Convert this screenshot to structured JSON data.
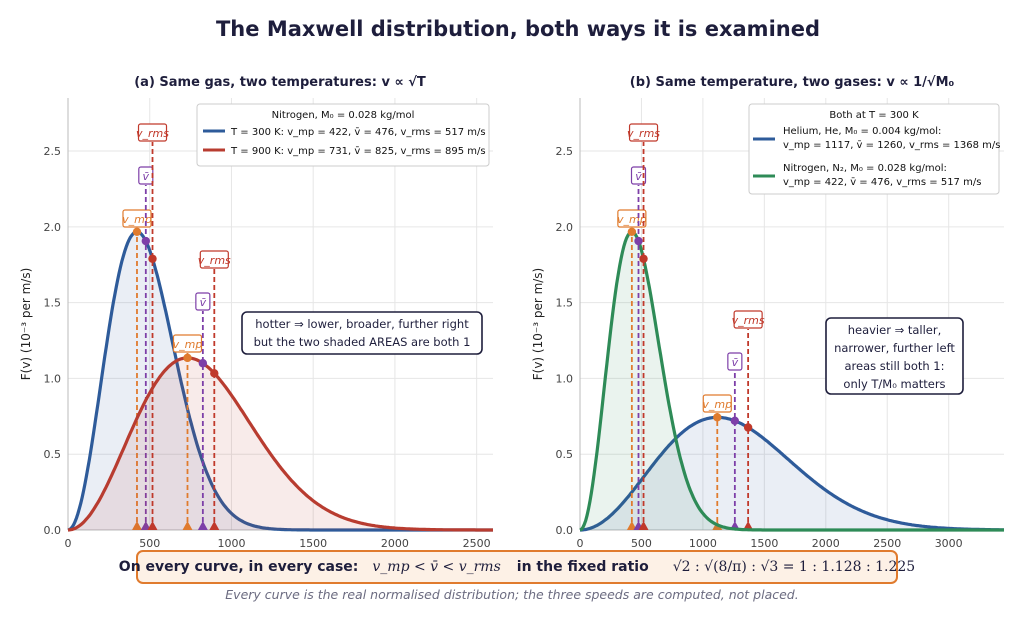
{
  "title": "The Maxwell distribution, both ways it is examined",
  "colors": {
    "blue": "#2e5b9a",
    "red": "#b83c30",
    "green": "#2e8b57",
    "vmp": "#e07b2e",
    "vbar": "#7d3fa8",
    "vrms": "#c0392b",
    "grid": "#e6e6e6",
    "navy": "#1e1e3c"
  },
  "footer": {
    "bold": "On every curve, in every case:",
    "inequality": "v_mp < v̄ < v_rms",
    "mid": "in the fixed ratio",
    "ratio": "√2 : √(8/π) : √3 = 1 : 1.128 : 1.225",
    "caption": "Every curve is the real normalised distribution; the three speeds are computed, not placed."
  },
  "chart_data": [
    {
      "type": "line",
      "title": "(a)  Same gas, two temperatures:  v ∝ √T",
      "xlabel": "",
      "ylabel": "F(v)  (10⁻³ per m/s)",
      "xlim": [
        0,
        2600
      ],
      "ylim": [
        0,
        2.85
      ],
      "xticks": [
        0,
        500,
        1000,
        1500,
        2000,
        2500
      ],
      "yticks": [
        0.0,
        0.5,
        1.0,
        1.5,
        2.0,
        2.5
      ],
      "grid": true,
      "legend_position": "top-right",
      "legend_title": "Nitrogen, M₀ = 0.028 kg/mol",
      "series": [
        {
          "name": "T = 300 K:  v_mp = 422,  v̄ = 476,  v_rms = 517 m/s",
          "T": 300,
          "M0": 0.028,
          "color": "#2e5b9a",
          "vmp": 422,
          "vbar": 476,
          "vrms": 517,
          "peak": 1.97
        },
        {
          "name": "T = 900 K:  v_mp = 731,  v̄ = 825,  v_rms = 895 m/s",
          "T": 900,
          "M0": 0.028,
          "color": "#b83c30",
          "vmp": 731,
          "vbar": 825,
          "vrms": 895,
          "peak": 1.13
        }
      ],
      "annotation": [
        "hotter ⇒ lower, broader, further right",
        "but the two shaded AREAS are both 1"
      ],
      "annotation_position": "center-right",
      "speed_labels": [
        "v_mp",
        "v̄",
        "v_rms"
      ]
    },
    {
      "type": "line",
      "title": "(b)  Same temperature, two gases:  v ∝ 1/√M₀",
      "xlabel": "",
      "ylabel": "F(v)  (10⁻³ per m/s)",
      "xlim": [
        0,
        3450
      ],
      "ylim": [
        0,
        2.85
      ],
      "xticks": [
        0,
        500,
        1000,
        1500,
        2000,
        2500,
        3000
      ],
      "yticks": [
        0.0,
        0.5,
        1.0,
        1.5,
        2.0,
        2.5
      ],
      "grid": true,
      "legend_position": "top-right",
      "legend_title": "Both at T = 300 K",
      "series": [
        {
          "name": "Helium, He, M₀ = 0.004 kg/mol:",
          "detail": "v_mp = 1117,  v̄ = 1260,  v_rms = 1368 m/s",
          "T": 300,
          "M0": 0.004,
          "color": "#2e5b9a",
          "vmp": 1117,
          "vbar": 1260,
          "vrms": 1368,
          "peak": 0.74
        },
        {
          "name": "Nitrogen, N₂, M₀ = 0.028 kg/mol:",
          "detail": "v_mp = 422,  v̄ = 476,  v_rms = 517 m/s",
          "T": 300,
          "M0": 0.028,
          "color": "#2e8b57",
          "vmp": 422,
          "vbar": 476,
          "vrms": 517,
          "peak": 1.97
        }
      ],
      "annotation": [
        "heavier ⇒ taller,",
        "narrower, further left",
        "areas still both 1:",
        "only T/M₀ matters"
      ],
      "annotation_position": "center-right",
      "speed_labels": [
        "v_mp",
        "v̄",
        "v_rms"
      ]
    }
  ]
}
